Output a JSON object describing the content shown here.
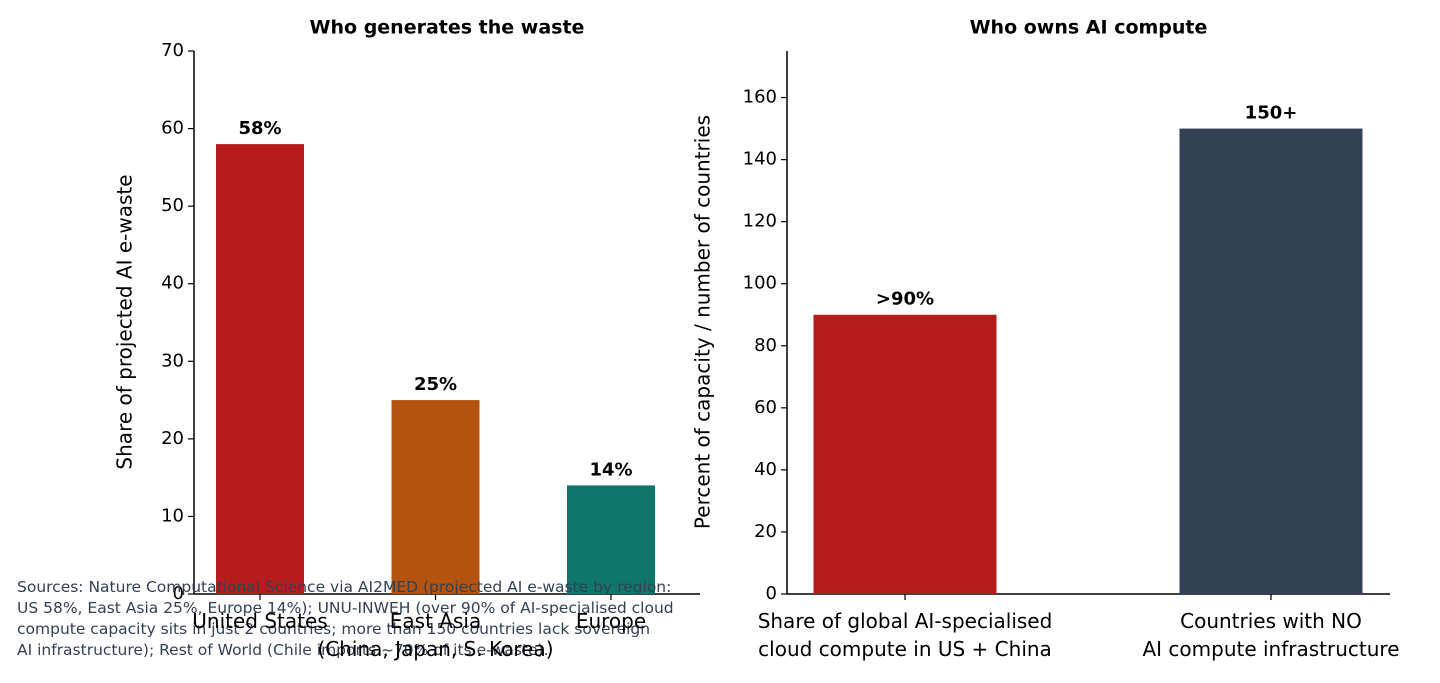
{
  "chart_data": [
    {
      "type": "bar",
      "title": "Who generates the waste",
      "ylabel": "Share of projected AI e-waste",
      "categories": [
        "United States",
        "East Asia\n(China, Japan, S. Korea)",
        "Europe"
      ],
      "values": [
        58,
        25,
        14
      ],
      "value_labels": [
        "58%",
        "25%",
        "14%"
      ],
      "colors": [
        "#b71c1c",
        "#b4530f",
        "#0f766e"
      ],
      "ylim": [
        0,
        70
      ],
      "yticks": [
        0,
        10,
        20,
        30,
        40,
        50,
        60,
        70
      ]
    },
    {
      "type": "bar",
      "title": "Who owns AI compute",
      "ylabel": "Percent of capacity / number of countries",
      "categories": [
        "Share of global AI-specialised\ncloud compute in US + China",
        "Countries with NO\nAI compute infrastructure"
      ],
      "values": [
        90,
        150
      ],
      "value_labels": [
        ">90%",
        "150+"
      ],
      "colors": [
        "#b71c1c",
        "#334155"
      ],
      "ylim": [
        0,
        175
      ],
      "yticks": [
        0,
        20,
        40,
        60,
        80,
        100,
        120,
        140,
        160
      ]
    }
  ],
  "sources": "Sources: Nature Computational Science via AI2MED (projected AI e-waste by region:\nUS 58%, East Asia 25%, Europe 14%); UNU-INWEH (over 90% of AI-specialised cloud\ncompute capacity sits in just 2 countries; more than 150 countries lack sovereign\nAI infrastructure); Rest of World (Chile imports ~70% of its e-waste)."
}
